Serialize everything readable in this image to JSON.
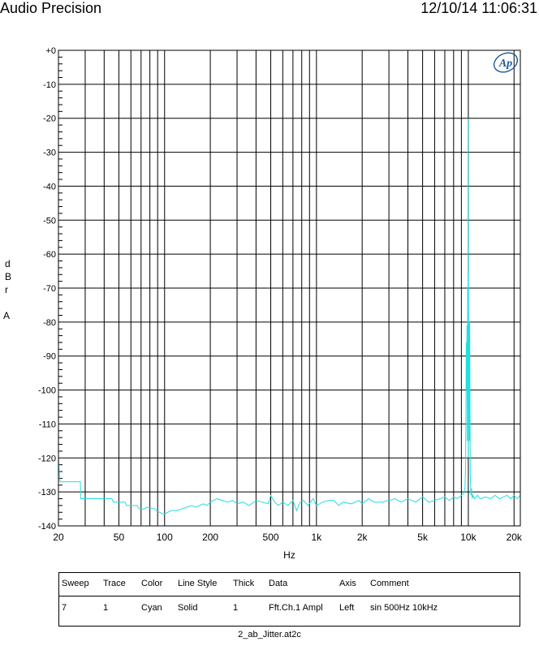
{
  "header": {
    "title": "Audio Precision",
    "datetime": "12/10/14 11:06:31"
  },
  "chart_data": {
    "type": "line",
    "xscale": "log",
    "xlim": [
      20,
      22000
    ],
    "ylim": [
      -140,
      0
    ],
    "grid": true,
    "xlabel": "Hz",
    "ylabel_letters": [
      "d",
      "B",
      "r",
      "",
      "A"
    ],
    "xticks": [
      20,
      50,
      100,
      200,
      500,
      1000,
      2000,
      5000,
      10000,
      20000
    ],
    "xtick_labels": [
      "20",
      "50",
      "100",
      "200",
      "500",
      "1k",
      "2k",
      "5k",
      "10k",
      "20k"
    ],
    "yticks": [
      0,
      -10,
      -20,
      -30,
      -40,
      -50,
      -60,
      -70,
      -80,
      -90,
      -100,
      -110,
      -120,
      -130,
      -140
    ],
    "ytick_labels": [
      "+0",
      "-10",
      "-20",
      "-30",
      "-40",
      "-50",
      "-60",
      "-70",
      "-80",
      "-90",
      "-100",
      "-110",
      "-120",
      "-130",
      "-140"
    ],
    "series": [
      {
        "color": "#1fe0e0",
        "x": [
          20,
          20.2,
          20.5,
          21,
          27.9,
          28,
          45,
          46,
          55,
          56,
          66,
          68,
          74,
          76,
          86,
          88,
          98,
          100,
          110,
          120,
          130,
          140,
          150,
          160,
          170,
          180,
          190,
          200,
          220,
          240,
          260,
          280,
          300,
          330,
          360,
          400,
          440,
          480,
          500,
          530,
          560,
          600,
          650,
          700,
          740,
          780,
          820,
          880,
          950,
          1000,
          1100,
          1200,
          1300,
          1400,
          1500,
          1700,
          1900,
          2000,
          2200,
          2400,
          2700,
          3000,
          3300,
          3600,
          4000,
          4500,
          5000,
          5500,
          6000,
          6500,
          7000,
          7500,
          8000,
          8500,
          9000,
          9300,
          9500,
          9600,
          9700,
          9750,
          9800,
          9850,
          9900,
          9950,
          9980,
          10000,
          10020,
          10050,
          10100,
          10150,
          10200,
          10300,
          10400,
          10500,
          10600,
          10700,
          11000,
          11500,
          12000,
          13000,
          14000,
          15000,
          16000,
          17000,
          18000,
          19000,
          20000,
          21000,
          22000
        ],
        "y": [
          -120,
          -124,
          -127,
          -127,
          -127,
          -132,
          -132,
          -133,
          -133,
          -134,
          -134,
          -135,
          -135,
          -134.5,
          -135,
          -135.5,
          -136.5,
          -136.5,
          -135.5,
          -135.5,
          -135,
          -134.5,
          -134,
          -134.5,
          -134,
          -133.5,
          -134,
          -133,
          -132,
          -132.5,
          -133,
          -132.5,
          -133.5,
          -133,
          -134,
          -132.5,
          -133,
          -133.5,
          -131,
          -133,
          -134,
          -133,
          -134,
          -132.5,
          -135.5,
          -133,
          -132.5,
          -134,
          -132,
          -134,
          -133,
          -132.5,
          -132.5,
          -134,
          -133,
          -133.5,
          -132.5,
          -133.5,
          -132,
          -133,
          -133,
          -132.5,
          -132,
          -133,
          -132,
          -133,
          -131.5,
          -133,
          -132.5,
          -132,
          -131.5,
          -132.5,
          -131.5,
          -132,
          -131,
          -130.5,
          -129,
          -122,
          -86,
          -100,
          -81,
          -115,
          -70,
          -95,
          -20,
          -120,
          -66,
          -90,
          -80,
          -115,
          -80,
          -125,
          -131,
          -129,
          -132,
          -131,
          -132,
          -131,
          -132,
          -131.5,
          -132,
          -131,
          -132,
          -131.5,
          -131,
          -132,
          -131,
          -132,
          -131
        ]
      }
    ]
  },
  "legend_table": {
    "headers": [
      "Sweep",
      "Trace",
      "Color",
      "Line Style",
      "Thick",
      "Data",
      "Axis",
      "Comment"
    ],
    "row": [
      "7",
      "1",
      "Cyan",
      "Solid",
      "1",
      "Fft.Ch.1 Ampl",
      "Left",
      "sin 500Hz 10kHz"
    ]
  },
  "footer": {
    "filename": "2_ab_Jitter.at2c"
  },
  "logo_text": "Ap"
}
